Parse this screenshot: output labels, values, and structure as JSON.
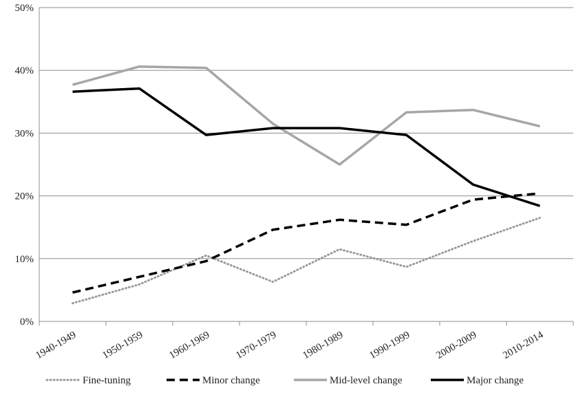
{
  "chart_data": {
    "type": "line",
    "categories": [
      "1940-1949",
      "1950-1959",
      "1960-1969",
      "1970-1979",
      "1980-1989",
      "1990-1999",
      "2000-2009",
      "2010-2014"
    ],
    "y_ticks": [
      "0%",
      "10%",
      "20%",
      "30%",
      "40%",
      "50%"
    ],
    "ylim": [
      0,
      50
    ],
    "grid": true,
    "legend_position": "bottom",
    "series": [
      {
        "name": "Fine-tuning",
        "style": "dotted",
        "color": "#999999",
        "values": [
          2.9,
          5.9,
          10.5,
          6.3,
          11.5,
          8.7,
          12.8,
          16.5
        ]
      },
      {
        "name": "Minor change",
        "style": "dashed",
        "color": "#000000",
        "values": [
          4.6,
          7.1,
          9.6,
          14.6,
          16.2,
          15.4,
          19.4,
          20.4
        ]
      },
      {
        "name": "Mid-level change",
        "style": "solid",
        "color": "#a6a6a6",
        "values": [
          37.7,
          40.6,
          40.4,
          31.5,
          25.0,
          33.3,
          33.7,
          31.1
        ]
      },
      {
        "name": "Major change",
        "style": "solid",
        "color": "#000000",
        "values": [
          36.6,
          37.1,
          29.7,
          30.8,
          30.8,
          29.7,
          21.8,
          18.4
        ]
      }
    ]
  }
}
